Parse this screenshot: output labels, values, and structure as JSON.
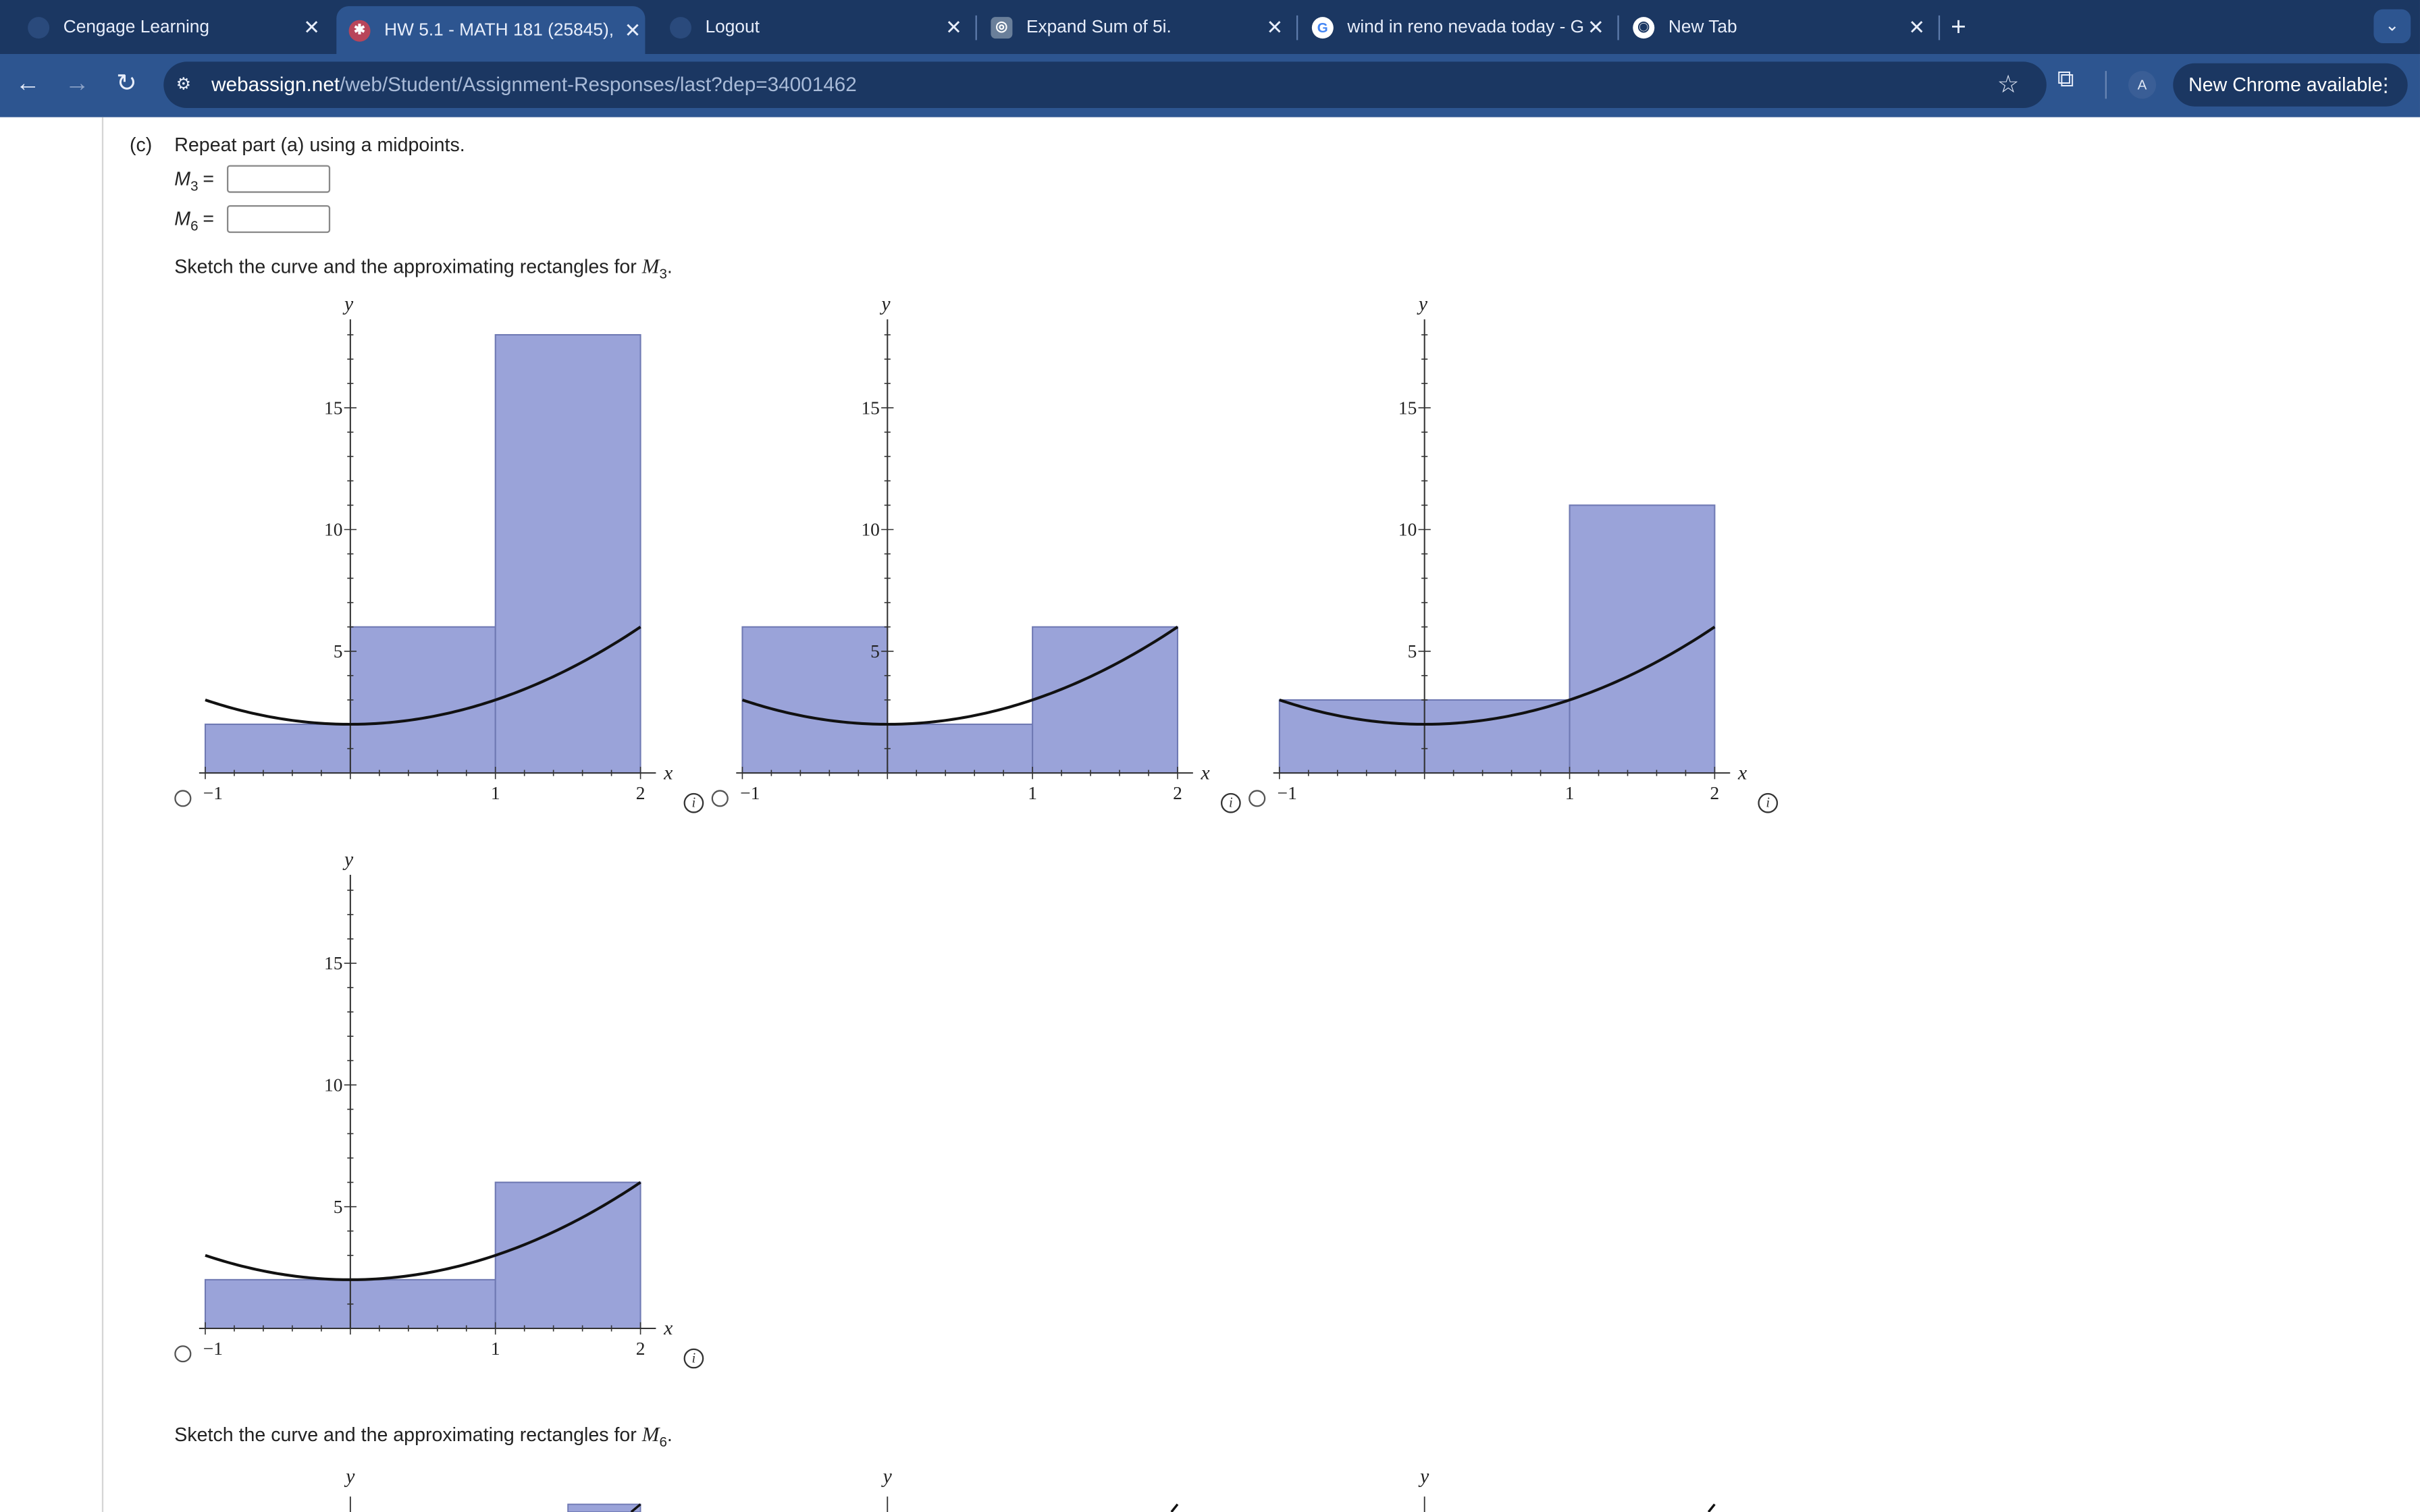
{
  "browser": {
    "tabs": [
      {
        "title": "Cengage Learning",
        "active": false
      },
      {
        "title": "HW 5.1 - MATH 181 (25845), ",
        "active": true
      },
      {
        "title": "Logout",
        "active": false
      },
      {
        "title": "Expand Sum of 5i.",
        "active": false
      },
      {
        "title": "wind in reno nevada today - G",
        "active": false
      },
      {
        "title": "New Tab",
        "active": false
      }
    ],
    "url_host": "webassign.net",
    "url_path": "/web/Student/Assignment-Responses/last?dep=34001462",
    "profile_initial": "A",
    "update_label": "New Chrome available"
  },
  "question": {
    "part_letter": "(c)",
    "part_text": "Repeat part (a) using a midpoints.",
    "answers": [
      {
        "sym": "M",
        "sub": "3",
        "value": ""
      },
      {
        "sym": "M",
        "sub": "6",
        "value": ""
      }
    ],
    "sketch_m3": {
      "prefix": "Sketch the curve and the approximating rectangles for ",
      "sym": "M",
      "sub": "3",
      "suffix": "."
    },
    "sketch_m6": {
      "prefix": "Sketch the curve and the approximating rectangles for ",
      "sym": "M",
      "sub": "6",
      "suffix": "."
    }
  },
  "chart_data": [
    {
      "type": "bar",
      "option": 1,
      "xlabel": "x",
      "ylabel": "y",
      "xlim": [
        -1,
        2
      ],
      "ylim": [
        0,
        18
      ],
      "x_ticks": [
        "−1",
        "1",
        "2"
      ],
      "y_ticks": [
        "5",
        "10",
        "15"
      ],
      "curve": "x^2 + 2",
      "rectangles": [
        {
          "x0": -1,
          "x1": 0,
          "height": 2
        },
        {
          "x0": 0,
          "x1": 1,
          "height": 6
        },
        {
          "x0": 1,
          "x1": 2,
          "height": 18
        }
      ]
    },
    {
      "type": "bar",
      "option": 2,
      "xlabel": "x",
      "ylabel": "y",
      "xlim": [
        -1,
        2
      ],
      "ylim": [
        0,
        18
      ],
      "x_ticks": [
        "−1",
        "1",
        "2"
      ],
      "y_ticks": [
        "5",
        "10",
        "15"
      ],
      "curve": "x^2 + 2",
      "rectangles": [
        {
          "x0": -1,
          "x1": 0,
          "height": 6
        },
        {
          "x0": 0,
          "x1": 1,
          "height": 2
        },
        {
          "x0": 1,
          "x1": 2,
          "height": 6
        }
      ]
    },
    {
      "type": "bar",
      "option": 3,
      "xlabel": "x",
      "ylabel": "y",
      "xlim": [
        -1,
        2
      ],
      "ylim": [
        0,
        18
      ],
      "x_ticks": [
        "−1",
        "1",
        "2"
      ],
      "y_ticks": [
        "5",
        "10",
        "15"
      ],
      "curve": "x^2 + 2",
      "rectangles": [
        {
          "x0": -1,
          "x1": 0,
          "height": 3
        },
        {
          "x0": 0,
          "x1": 1,
          "height": 3
        },
        {
          "x0": 1,
          "x1": 2,
          "height": 11
        }
      ]
    },
    {
      "type": "bar",
      "option": 4,
      "xlabel": "x",
      "ylabel": "y",
      "xlim": [
        -1,
        2
      ],
      "ylim": [
        0,
        18
      ],
      "x_ticks": [
        "−1",
        "1",
        "2"
      ],
      "y_ticks": [
        "5",
        "10",
        "15"
      ],
      "curve": "x^2 + 2",
      "rectangles": [
        {
          "x0": -1,
          "x1": 0,
          "height": 2
        },
        {
          "x0": 0,
          "x1": 1,
          "height": 2
        },
        {
          "x0": 1,
          "x1": 2,
          "height": 6
        }
      ]
    }
  ],
  "colors": {
    "rect_fill": "#9aa3d9",
    "rect_stroke": "#6f79b3",
    "curve": "#111111"
  }
}
